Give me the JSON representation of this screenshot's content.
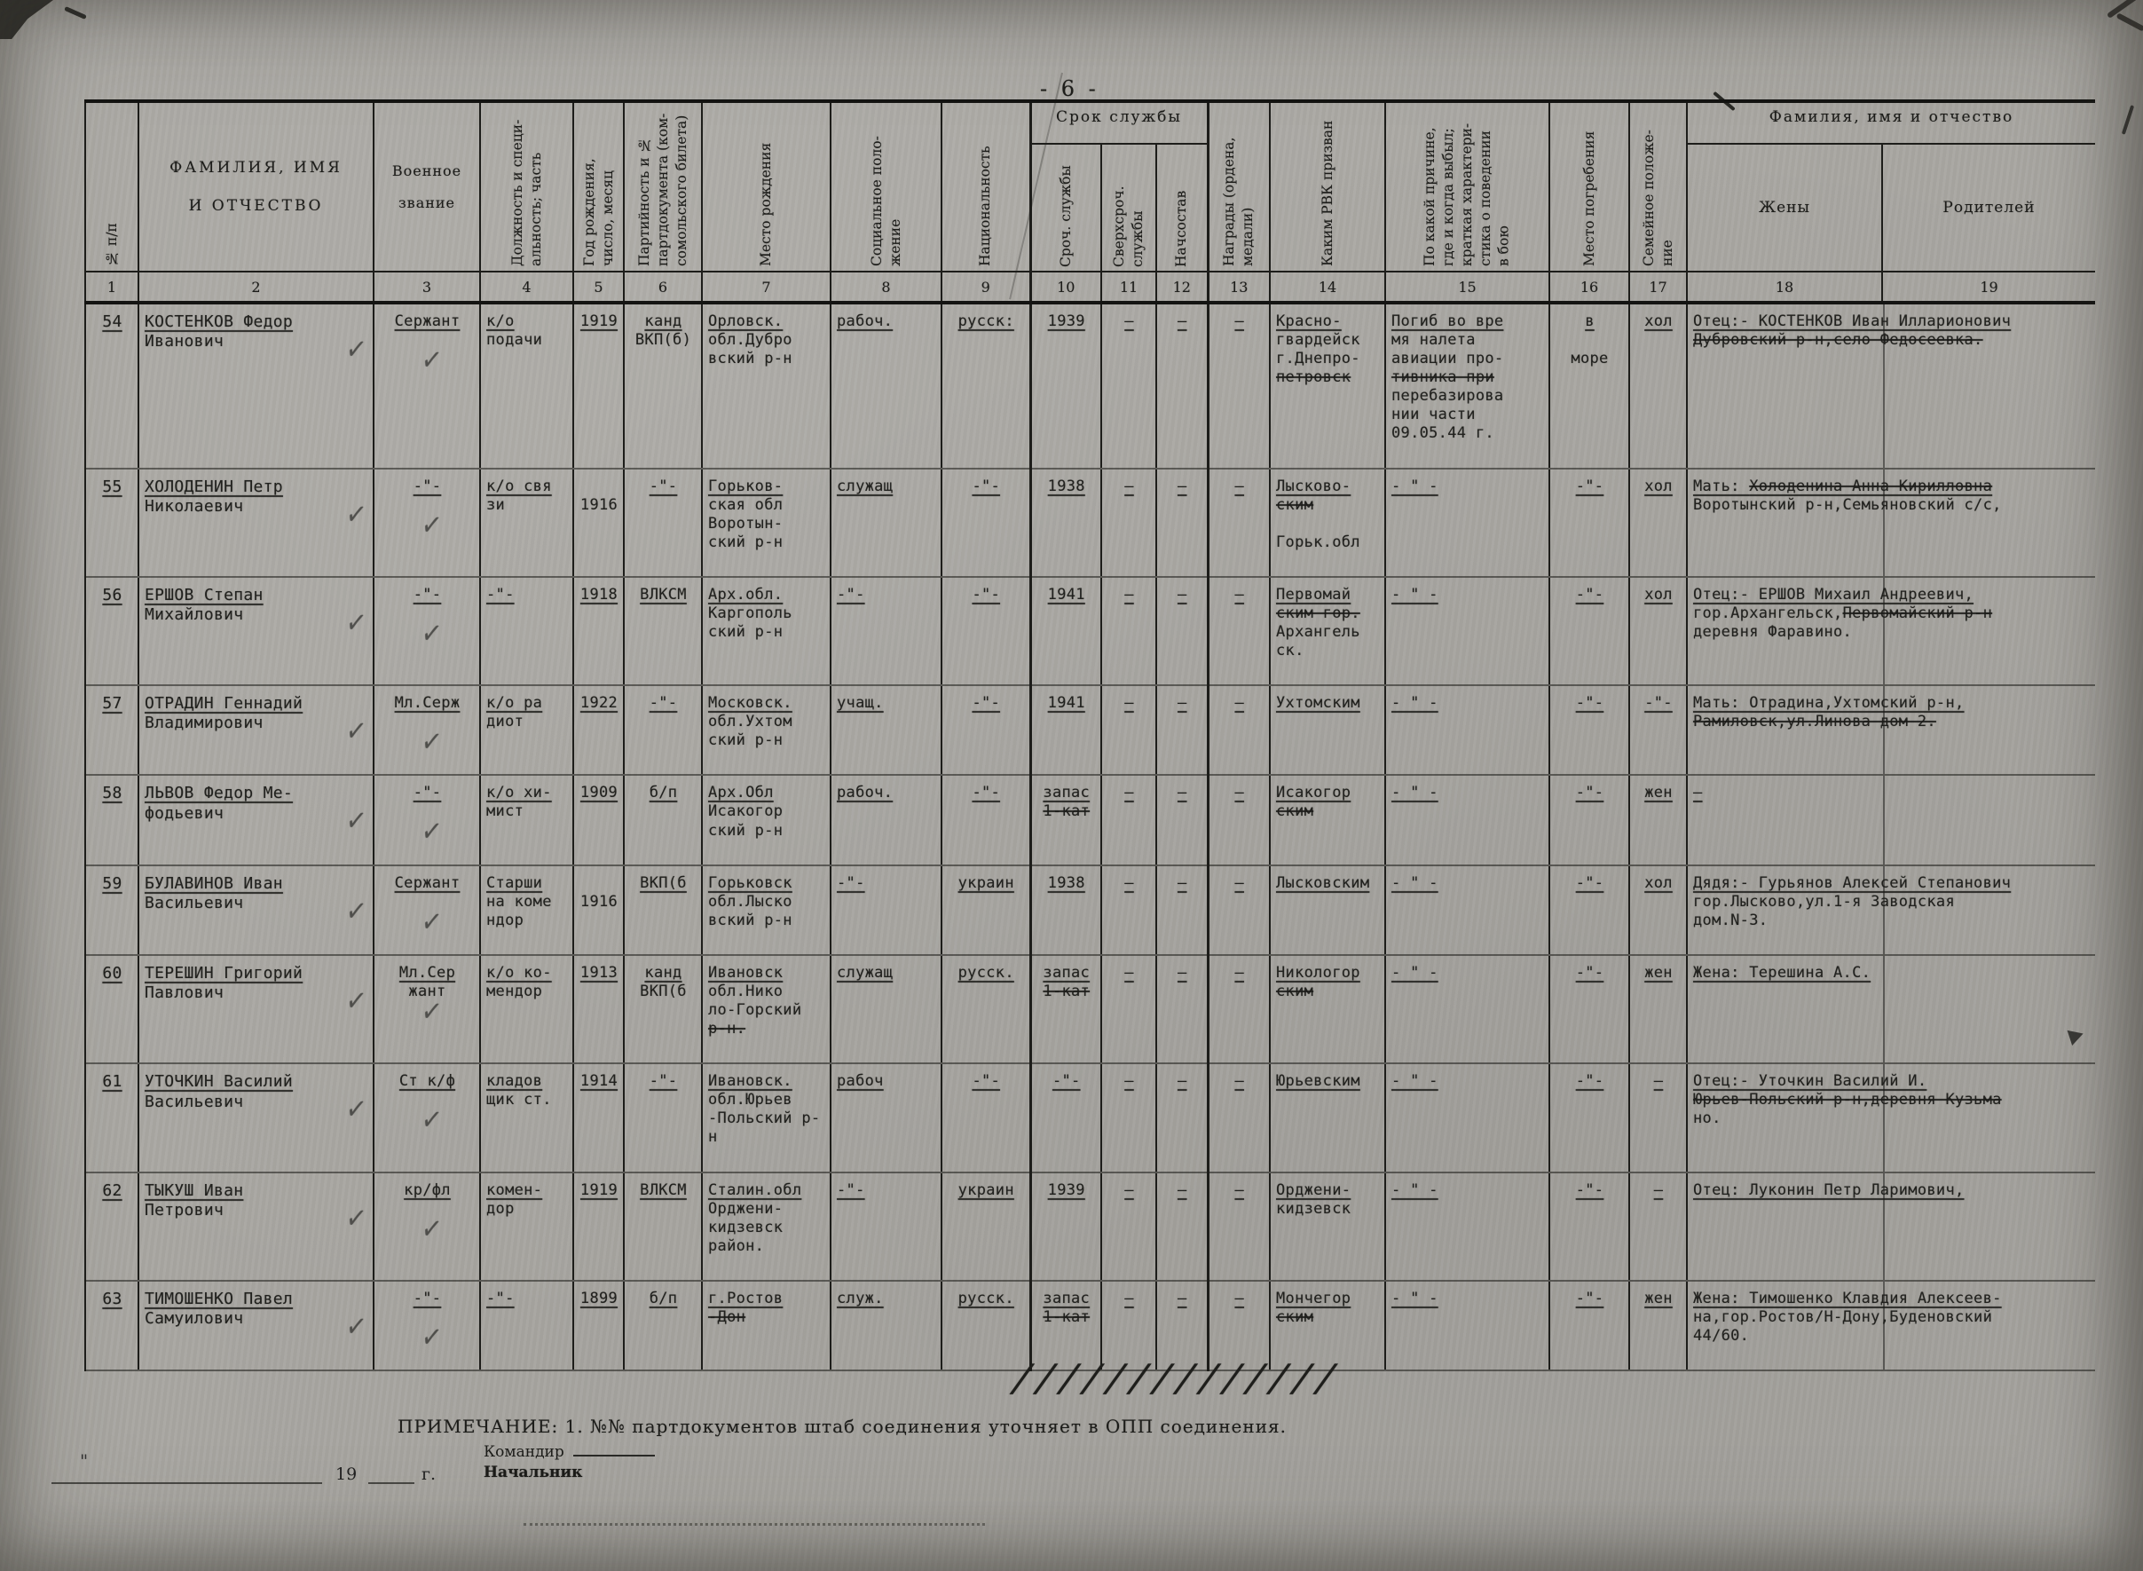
{
  "page": {
    "number_label": "- 6 -",
    "note": "ПРИМЕЧАНИЕ: 1. №№ партдокументов штаб соединения уточняет в ОПП соединения.",
    "signature_commander": "Командир",
    "signature_chief": "Начальник",
    "footer_year": "19",
    "footer_year_suffix": "г.",
    "footer_mark": "\"",
    "hatch_marks": "//////////////",
    "check_mark": "✓",
    "paper_color": "#a9a7a2",
    "ink_color": "#21211e"
  },
  "table": {
    "group_service": "Срок службы",
    "group_family": "Фамилия, имя и отчество",
    "columns": [
      {
        "num": "1",
        "label": "№ п/п"
      },
      {
        "num": "2",
        "label": "ФАМИЛИЯ, ИМЯ\nИ ОТЧЕСТВО"
      },
      {
        "num": "3",
        "label": "Военное\nзвание"
      },
      {
        "num": "4",
        "label": "Должность и специ-\nальность; часть"
      },
      {
        "num": "5",
        "label": "Год рождения,\nчисло, месяц"
      },
      {
        "num": "6",
        "label": "Партийность и №\nпартдокумента (ком-\nсомольского билета)"
      },
      {
        "num": "7",
        "label": "Место рождения"
      },
      {
        "num": "8",
        "label": "Социальное поло-\nжение"
      },
      {
        "num": "9",
        "label": "Национальность"
      },
      {
        "num": "10",
        "label": "Сроч. службы"
      },
      {
        "num": "11",
        "label": "Сверхсроч.\nслужбы"
      },
      {
        "num": "12",
        "label": "Начсостав"
      },
      {
        "num": "13",
        "label": "Награды (ордена,\nмедали)"
      },
      {
        "num": "14",
        "label": "Каким РВК призван"
      },
      {
        "num": "15",
        "label": "По какой причине,\nгде и когда выбыл;\nкраткая характери-\nстика о поведении\nв бою"
      },
      {
        "num": "16",
        "label": "Место погребения"
      },
      {
        "num": "17",
        "label": "Семейное положе-\nние"
      },
      {
        "num": "18",
        "label": "Жены"
      },
      {
        "num": "19",
        "label": "Родителей"
      }
    ],
    "rows": [
      {
        "num": "54",
        "cells": [
          "КОСТЕНКОВ Федор\nИванович",
          "Сержант",
          "к/о\nподачи",
          "1919",
          "канд\nВКП(б)",
          "Орловск.\nобл.Дубро\nвский р-н",
          "рабоч.",
          "русск:",
          "1939",
          "–",
          "–",
          "–",
          "Красно-\nгвардейск\nг.Днепро-\n~~петровск~~",
          "Погиб во вре\nмя налета\nавиации про-\n~~тивника при~~\nперебазирова\nнии части\n09.05.44 г.",
          "в\n\nморе",
          "хол"
        ],
        "family": "Отец:- КОСТЕНКОВ Иван Илларионович\n~~Дубровский р-н,село Федосеевка.~~"
      },
      {
        "num": "55",
        "cells": [
          "ХОЛОДЕНИН Петр\nНиколаевич",
          "-\"-",
          "к/о свя\nзи",
          "\n1916",
          "-\"-",
          "Горьков-\nская обл\nВоротын-\nский р-н",
          "служащ",
          "-\"-",
          "1938",
          "–",
          "–",
          "–",
          "Лысково-\n~~ским~~\n\nГорьк.обл",
          "- \" -",
          "-\"-",
          "хол"
        ],
        "family": "Мать: ~~Холоденина Анна Кирилловна~~\nВоротынский р-н,Семьяновский с/с,"
      },
      {
        "num": "56",
        "cells": [
          "ЕРШОВ Степан\nМихайлович",
          "-\"-",
          "-\"-",
          "1918",
          "ВЛКСМ",
          "Арх.обл.\nКаргополь\nский р-н",
          "-\"-",
          "-\"-",
          "1941",
          "–",
          "–",
          "–",
          "Первомай\n~~ским гор.~~\nАрхангель\nск.",
          "- \" -",
          "-\"-",
          "хол"
        ],
        "family": "Отец:- ЕРШОВ Михаил Андреевич,\nгор.Архангельск,~~Первомайский р-н~~\nдеревня Фаравино."
      },
      {
        "num": "57",
        "cells": [
          "ОТРАДИН Геннадий\nВладимирович",
          "Мл.Серж",
          "к/о ра\nдиот",
          "1922",
          "-\"-",
          "Московск.\nобл.Ухтом\nский р-н",
          "учащ.",
          "-\"-",
          "1941",
          "–",
          "–",
          "–",
          "Ухтомским",
          "- \" -",
          "-\"-",
          "-\"-"
        ],
        "family": "Мать: Отрадина,Ухтомский р-н,\n~~Рамиловск,ул.Линова дом 2.~~"
      },
      {
        "num": "58",
        "cells": [
          "ЛЬВОВ Федор Ме-\nфодьевич",
          "-\"-",
          "к/о хи-\nмист",
          "1909",
          "б/п",
          "Арх.Обл\nИсакогор\nский р-н",
          "рабоч.",
          "-\"-",
          "запас\n~~1-кат~~",
          "–",
          "–",
          "–",
          "Исакогор\n~~ским~~",
          "- \" -",
          "-\"-",
          "жен"
        ],
        "family": "–"
      },
      {
        "num": "59",
        "cells": [
          "БУЛАВИНОВ Иван\nВасильевич",
          "Сержант",
          "Старши\nна коме\nндор",
          "\n1916",
          "ВКП(б",
          "Горьковск\nобл.Лыско\nвский р-н",
          "-\"-",
          "украин",
          "1938",
          "–",
          "–",
          "–",
          "Лысковским",
          "- \" -",
          "-\"-",
          "хол"
        ],
        "family": "Дядя:- Гурьянов Алексей Степанович\nгор.Лысково,ул.1-я Заводская\nдом.N-3."
      },
      {
        "num": "60",
        "cells": [
          "ТЕРЕШИН Григорий\nПавлович",
          "Мл.Сер\nжант",
          "к/о ко-\nмендор",
          "1913",
          "канд\nВКП(б",
          "Ивановск\nобл.Нико\nло-Горский\n~~р-н.~~",
          "служащ",
          "русск.",
          "запас\n~~1-кат~~",
          "–",
          "–",
          "–",
          "Никологор\n~~ским~~",
          "- \" -",
          "-\"-",
          "жен"
        ],
        "family": "Жена: Терешина А.С."
      },
      {
        "num": "61",
        "cells": [
          "УТОЧКИН Василий\nВасильевич",
          "Ст к/ф",
          "кладов\nщик ст.",
          "1914",
          "-\"-",
          "Ивановск.\nобл.Юрьев\n-Польский р-н",
          "рабоч",
          "-\"-",
          "-\"-",
          "–",
          "–",
          "–",
          "Юрьевским",
          "- \" -",
          "-\"-",
          "–"
        ],
        "family": "Отец:- Уточкин Василий И.\n~~Юрьев-Польский р-н,деревня Кузьма~~\nно."
      },
      {
        "num": "62",
        "cells": [
          "ТЫКУШ Иван\nПетрович",
          "кр/фл",
          "комен-\nдор",
          "1919",
          "ВЛКСМ",
          "Сталин.обл\nОрджени-\nкидзевск\nрайон.",
          "-\"-",
          "украин",
          "1939",
          "–",
          "–",
          "–",
          "Орджени-\nкидзевск",
          "- \" -",
          "-\"-",
          "–"
        ],
        "family": "Отец: Луконин Петр Ларимович,"
      },
      {
        "num": "63",
        "cells": [
          "ТИМОШЕНКО Павел\nСамуилович",
          "-\"-",
          "-\"-",
          "1899",
          "б/п",
          "г.Ростов\n~~-Дон~~",
          "служ.",
          "русск.",
          "запас\n~~1-кат~~",
          "–",
          "–",
          "–",
          "Мончегор\n~~ским~~",
          "- \" -",
          "-\"-",
          "жен"
        ],
        "family": "Жена: Тимошенко Клавдия Алексеев-\nна,гор.Ростов/Н-Дону,Буденовский\n44/60."
      }
    ]
  }
}
